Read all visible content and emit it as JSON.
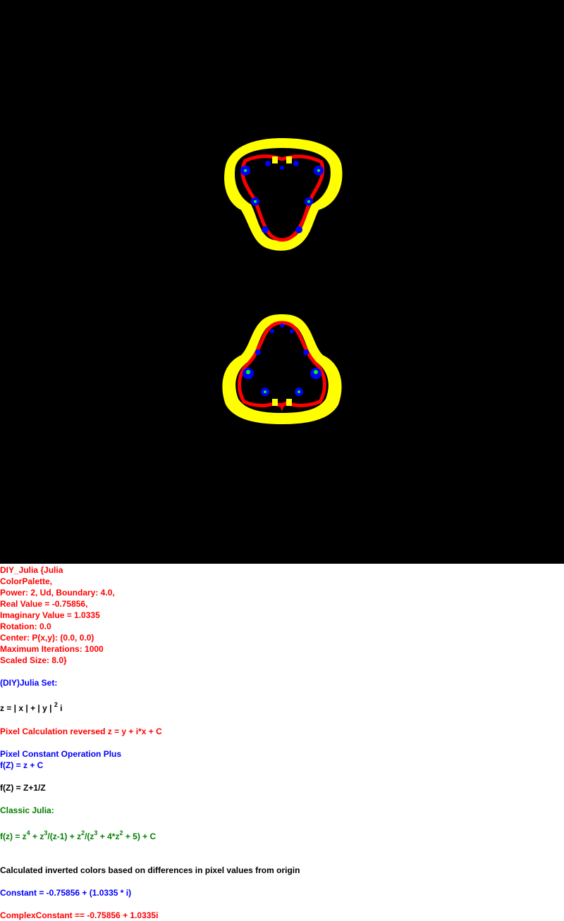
{
  "params": [
    "DIY_Julia {Julia",
    "ColorPalette,",
    "Power: 2, Ud, Boundary: 4.0,",
    "Real Value = -0.75856,",
    "Imaginary Value = 1.0335",
    "Rotation: 0.0",
    "Center: P(x,y): (0.0, 0.0)",
    "Maximum Iterations: 1000",
    "Scaled Size: 8.0}"
  ],
  "set_title": "(DIY)Julia Set:",
  "formula_z": {
    "a": "z = | x | + | y | ",
    "exp": "2",
    "b": " i"
  },
  "pixel_calc": "Pixel Calculation reversed z = y + i*x + C",
  "pixel_const_op": "Pixel Constant Operation Plus",
  "f_plus": "f(Z) = z + C",
  "f_inverse": "f(Z) = Z+1/Z",
  "classic_title": "Classic Julia:",
  "classic_formula": {
    "p1": "f(z) = z",
    "e1": "4",
    "p2": " + z",
    "e2": "3",
    "p3": "/(z-1) + z",
    "e3": "2",
    "p4": "/(z",
    "e4": "3",
    "p5": " + 4*z",
    "e5": "2",
    "p6": " + 5) + C"
  },
  "inverted_note": "Calculated inverted colors based on differences in pixel values from origin",
  "constant": "Constant = -0.75856 + (1.0335 * i)",
  "complex_constant": "ComplexConstant == -0.75856 + 1.0335i",
  "colors": {
    "background": "#000000",
    "halo": "#ffff00",
    "edge": "#ff0000",
    "bulb": "#0000ff",
    "core": "#00ff00"
  }
}
